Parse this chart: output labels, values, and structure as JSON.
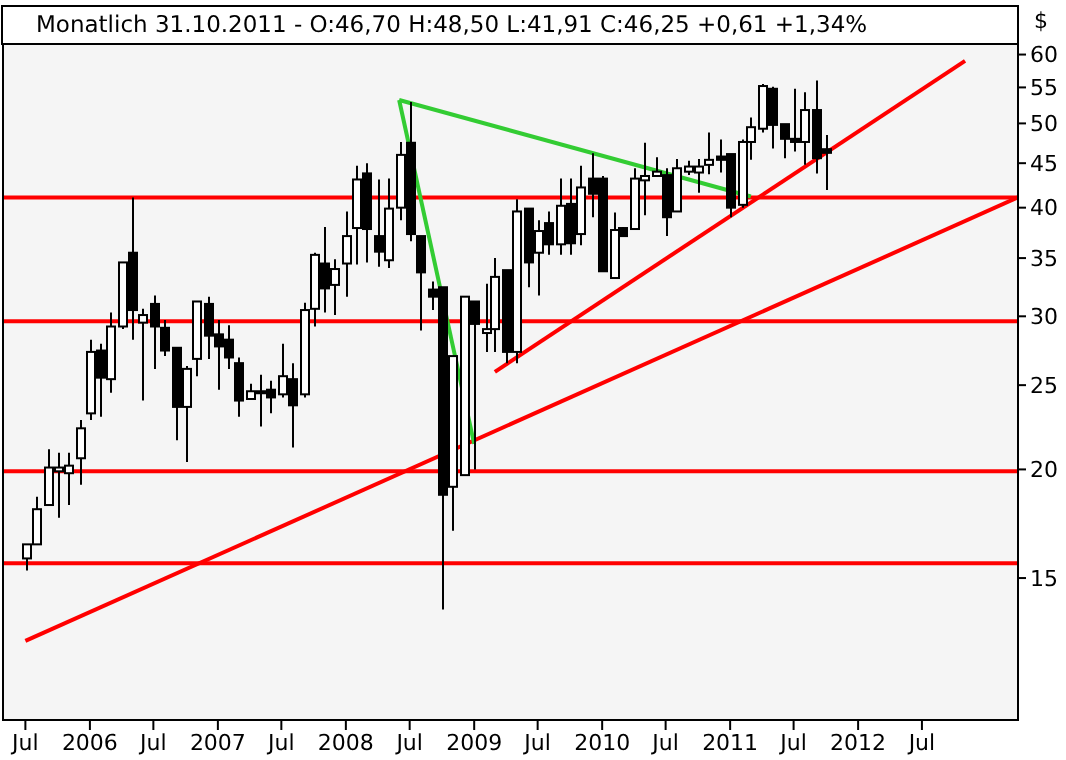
{
  "chart_data": {
    "type": "candlestick",
    "title": "Monatlich 31.10.2011 - O:46,70 H:48,50 L:41,91 C:46,25 +0,61 +1,34%",
    "ylabel": "$",
    "log": true,
    "xlim": [
      "2005-05",
      "2013-04"
    ],
    "ylim": [
      10.3,
      61.7
    ],
    "yticks": [
      15,
      20,
      25,
      30,
      35,
      40,
      45,
      50,
      55,
      60
    ],
    "xticks": [
      {
        "value": "2005-07",
        "label": "Jul"
      },
      {
        "value": "2006-01",
        "label": "2006"
      },
      {
        "value": "2006-07",
        "label": "Jul"
      },
      {
        "value": "2007-01",
        "label": "2007"
      },
      {
        "value": "2007-07",
        "label": "Jul"
      },
      {
        "value": "2008-01",
        "label": "2008"
      },
      {
        "value": "2008-07",
        "label": "Jul"
      },
      {
        "value": "2009-01",
        "label": "2009"
      },
      {
        "value": "2009-07",
        "label": "Jul"
      },
      {
        "value": "2010-01",
        "label": "2010"
      },
      {
        "value": "2010-07",
        "label": "Jul"
      },
      {
        "value": "2011-01",
        "label": "2011"
      },
      {
        "value": "2011-07",
        "label": "Jul"
      },
      {
        "value": "2012-01",
        "label": "2012"
      },
      {
        "value": "2012-07",
        "label": "Jul"
      }
    ],
    "x": [
      "2005-07",
      "2005-08",
      "2005-09",
      "2005-10",
      "2005-11",
      "2005-12",
      "2006-01",
      "2006-02",
      "2006-03",
      "2006-04",
      "2006-05",
      "2006-06",
      "2006-07",
      "2006-08",
      "2006-09",
      "2006-10",
      "2006-11",
      "2006-12",
      "2007-01",
      "2007-02",
      "2007-03",
      "2007-04",
      "2007-05",
      "2007-06",
      "2007-07",
      "2007-08",
      "2007-09",
      "2007-10",
      "2007-11",
      "2007-12",
      "2008-01",
      "2008-02",
      "2008-03",
      "2008-04",
      "2008-05",
      "2008-06",
      "2008-07",
      "2008-08",
      "2008-09",
      "2008-10",
      "2008-11",
      "2008-12",
      "2009-01",
      "2009-02",
      "2009-03",
      "2009-04",
      "2009-05",
      "2009-06",
      "2009-07",
      "2009-08",
      "2009-09",
      "2009-10",
      "2009-11",
      "2009-12",
      "2010-01",
      "2010-02",
      "2010-03",
      "2010-04",
      "2010-05",
      "2010-06",
      "2010-07",
      "2010-08",
      "2010-09",
      "2010-10",
      "2010-11",
      "2010-12",
      "2011-01",
      "2011-02",
      "2011-03",
      "2011-04",
      "2011-05",
      "2011-06",
      "2011-07",
      "2011-08",
      "2011-09",
      "2011-10"
    ],
    "ohlc": [
      [
        15.8,
        16.4,
        15.3,
        16.4
      ],
      [
        16.4,
        18.6,
        16.4,
        18.0
      ],
      [
        18.2,
        21.1,
        18.2,
        20.1
      ],
      [
        19.9,
        20.9,
        17.6,
        20.1
      ],
      [
        19.8,
        20.9,
        18.2,
        20.2
      ],
      [
        20.6,
        22.8,
        19.2,
        22.3
      ],
      [
        23.2,
        28.2,
        22.8,
        27.3
      ],
      [
        27.4,
        27.9,
        23.0,
        25.5
      ],
      [
        25.4,
        30.3,
        24.5,
        29.2
      ],
      [
        29.2,
        34.6,
        29.0,
        34.6
      ],
      [
        35.5,
        41.1,
        28.2,
        30.5
      ],
      [
        29.5,
        30.6,
        24.0,
        30.1
      ],
      [
        31.0,
        31.7,
        26.1,
        29.2
      ],
      [
        29.1,
        29.7,
        27.0,
        27.4
      ],
      [
        27.6,
        27.6,
        21.6,
        23.6
      ],
      [
        23.6,
        26.3,
        20.4,
        26.1
      ],
      [
        26.8,
        31.2,
        25.6,
        31.2
      ],
      [
        31.0,
        31.6,
        26.8,
        28.5
      ],
      [
        28.6,
        29.7,
        24.7,
        27.7
      ],
      [
        28.2,
        29.3,
        26.1,
        26.9
      ],
      [
        26.5,
        26.9,
        23.0,
        24.0
      ],
      [
        24.1,
        25.1,
        24.1,
        24.6
      ],
      [
        24.6,
        25.7,
        22.4,
        24.5
      ],
      [
        24.7,
        25.3,
        23.2,
        24.2
      ],
      [
        24.4,
        27.9,
        24.2,
        25.6
      ],
      [
        25.4,
        26.5,
        21.2,
        23.7
      ],
      [
        24.4,
        31.1,
        24.2,
        30.5
      ],
      [
        30.6,
        35.5,
        29.2,
        35.3
      ],
      [
        34.5,
        38.0,
        30.3,
        32.3
      ],
      [
        32.6,
        34.9,
        30.1,
        34.0
      ],
      [
        34.5,
        39.6,
        31.6,
        37.1
      ],
      [
        37.9,
        44.7,
        34.4,
        43.1
      ],
      [
        43.8,
        45.0,
        34.6,
        37.8
      ],
      [
        37.1,
        43.1,
        34.2,
        35.6
      ],
      [
        34.8,
        43.2,
        34.1,
        39.9
      ],
      [
        40.0,
        47.6,
        38.7,
        46.0
      ],
      [
        47.5,
        52.9,
        36.6,
        37.3
      ],
      [
        37.1,
        37.1,
        28.9,
        33.7
      ],
      [
        32.2,
        32.9,
        30.5,
        31.6
      ],
      [
        32.4,
        32.4,
        13.8,
        18.7
      ],
      [
        19.1,
        27.0,
        17.0,
        27.0
      ],
      [
        19.7,
        31.6,
        19.7,
        31.6
      ],
      [
        31.2,
        31.2,
        20.0,
        29.4
      ],
      [
        28.7,
        32.7,
        27.3,
        29.0
      ],
      [
        29.0,
        35.0,
        27.3,
        33.3
      ],
      [
        33.9,
        33.9,
        26.5,
        27.3
      ],
      [
        27.3,
        40.9,
        26.5,
        39.6
      ],
      [
        39.9,
        39.9,
        32.4,
        34.6
      ],
      [
        35.5,
        38.7,
        31.7,
        37.6
      ],
      [
        38.4,
        39.6,
        35.3,
        36.3
      ],
      [
        36.3,
        43.2,
        35.3,
        40.2
      ],
      [
        40.4,
        43.2,
        35.3,
        36.4
      ],
      [
        37.3,
        44.7,
        36.2,
        42.2
      ],
      [
        43.2,
        46.2,
        39.0,
        41.5
      ],
      [
        43.2,
        43.5,
        33.8,
        33.8
      ],
      [
        33.2,
        39.5,
        33.2,
        37.7
      ],
      [
        37.9,
        38.0,
        37.0,
        37.1
      ],
      [
        37.8,
        44.4,
        37.8,
        43.2
      ],
      [
        43.0,
        47.5,
        39.2,
        43.5
      ],
      [
        43.5,
        45.7,
        43.5,
        44.0
      ],
      [
        43.6,
        44.4,
        37.1,
        39.0
      ],
      [
        39.6,
        45.5,
        39.6,
        44.4
      ],
      [
        44.0,
        45.3,
        43.6,
        44.6
      ],
      [
        43.9,
        45.5,
        41.6,
        44.6
      ],
      [
        44.8,
        48.8,
        43.7,
        45.4
      ],
      [
        45.8,
        47.9,
        43.9,
        45.4
      ],
      [
        46.1,
        46.1,
        39.0,
        40.0
      ],
      [
        40.3,
        47.9,
        40.0,
        47.6
      ],
      [
        47.6,
        50.8,
        45.4,
        49.5
      ],
      [
        49.3,
        55.5,
        48.8,
        55.2
      ],
      [
        54.8,
        55.1,
        46.8,
        49.8
      ],
      [
        49.9,
        49.9,
        45.6,
        48.0
      ],
      [
        48.0,
        54.8,
        46.4,
        47.6
      ],
      [
        47.6,
        54.3,
        44.8,
        51.8
      ],
      [
        51.8,
        56.0,
        43.8,
        45.6
      ],
      [
        46.7,
        48.5,
        41.91,
        46.25
      ]
    ],
    "ref_lines": [
      {
        "axis": "y",
        "value": 41.1,
        "color": "#ff0000"
      },
      {
        "axis": "y",
        "value": 29.6,
        "color": "#ff0000"
      },
      {
        "axis": "y",
        "value": 19.9,
        "color": "#ff0000"
      },
      {
        "axis": "y",
        "value": 15.6,
        "color": "#ff0000"
      }
    ],
    "series": [
      {
        "type": "line",
        "color": "#ff0000",
        "x": [
          "2005-07",
          "2013-04"
        ],
        "values": [
          12.7,
          41.1
        ]
      },
      {
        "type": "line",
        "color": "#ff0000",
        "x": [
          "2009-03",
          "2012-11"
        ],
        "values": [
          25.9,
          59.0
        ]
      },
      {
        "type": "line",
        "color": "#33cc33",
        "x": [
          "2008-06",
          "2009-01"
        ],
        "values": [
          53.2,
          21.4
        ]
      },
      {
        "type": "line",
        "color": "#33cc33",
        "x": [
          "2008-06",
          "2011-03"
        ],
        "values": [
          53.2,
          41.2
        ]
      }
    ]
  }
}
